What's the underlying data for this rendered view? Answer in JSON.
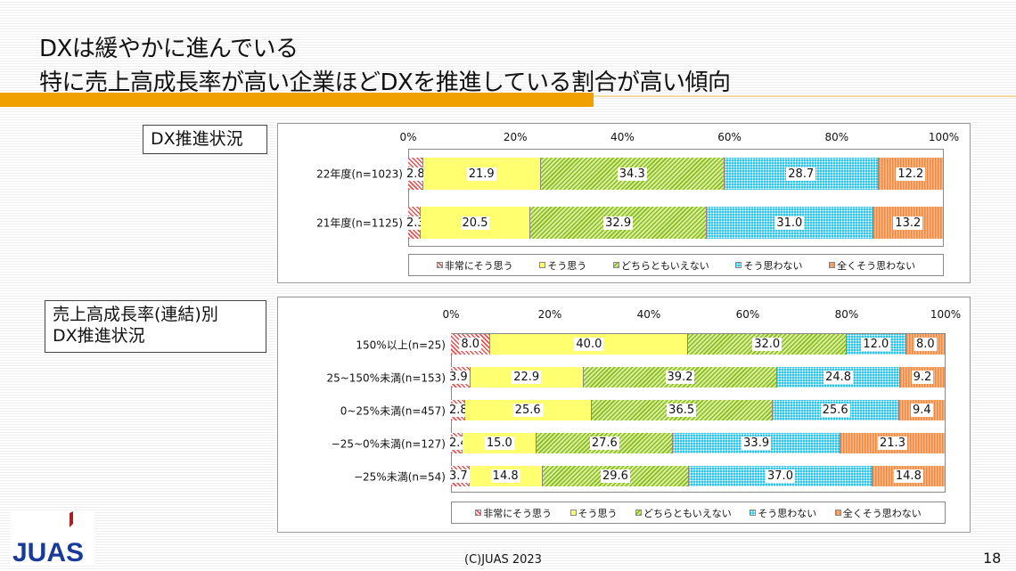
{
  "title": {
    "line1": "DXは緩やかに進んでいる",
    "line2": "特に売上高成長率が高い企業ほどDXを推進している割合が高い傾向"
  },
  "colors": {
    "accent_bar": "#f0a000",
    "series": [
      "#e85050",
      "#ffff70",
      "#88bb22",
      "#2cc4ec",
      "#f08840"
    ]
  },
  "chart_data": [
    {
      "type": "bar",
      "orientation": "horizontal",
      "stacked": "percent",
      "label": "DX推進状況",
      "xticks": [
        "0%",
        "20%",
        "40%",
        "60%",
        "80%",
        "100%"
      ],
      "xlim": [
        0,
        100
      ],
      "legend_placement": "bottom",
      "categories": [
        "22年度(n=1023)",
        "21年度(n=1125)"
      ],
      "series": [
        {
          "name": "非常にそう思う",
          "values": [
            2.8,
            2.3
          ]
        },
        {
          "name": "そう思う",
          "values": [
            21.9,
            20.5
          ]
        },
        {
          "name": "どちらともいえない",
          "values": [
            34.3,
            32.9
          ]
        },
        {
          "name": "そう思わない",
          "values": [
            28.7,
            31.0
          ]
        },
        {
          "name": "全くそう思わない",
          "values": [
            12.2,
            13.2
          ]
        }
      ]
    },
    {
      "type": "bar",
      "orientation": "horizontal",
      "stacked": "percent",
      "label": "売上高成長率(連結)別\nDX推進状況",
      "label_lines": [
        "売上高成長率(連結)別",
        "DX推進状況"
      ],
      "xticks": [
        "0%",
        "20%",
        "40%",
        "60%",
        "80%",
        "100%"
      ],
      "xlim": [
        0,
        100
      ],
      "legend_placement": "bottom",
      "categories": [
        "150%以上(n=25)",
        "25~150%未満(n=153)",
        "0~25%未満(n=457)",
        "−25~0%未満(n=127)",
        "−25%未満(n=54)"
      ],
      "series": [
        {
          "name": "非常にそう思う",
          "values": [
            8.0,
            3.9,
            2.8,
            2.4,
            3.7
          ]
        },
        {
          "name": "そう思う",
          "values": [
            40.0,
            22.9,
            25.6,
            15.0,
            14.8
          ]
        },
        {
          "name": "どちらともいえない",
          "values": [
            32.0,
            39.2,
            36.5,
            27.6,
            29.6
          ]
        },
        {
          "name": "そう思わない",
          "values": [
            12.0,
            24.8,
            25.6,
            33.9,
            37.0
          ]
        },
        {
          "name": "全くそう思わない",
          "values": [
            8.0,
            9.2,
            9.4,
            21.3,
            14.8
          ]
        }
      ]
    }
  ],
  "footer": {
    "copyright": "(C)JUAS 2023",
    "page_number": "18"
  },
  "logo": {
    "text": "JUAS"
  }
}
